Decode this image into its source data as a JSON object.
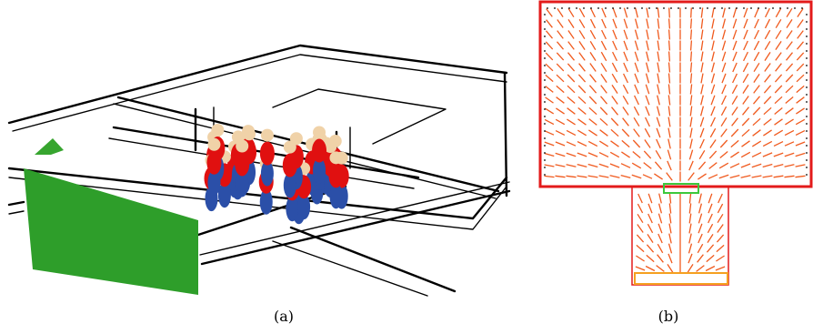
{
  "panel_a": {
    "caption": "(a)"
  },
  "panel_b": {
    "caption": "(b)"
  },
  "colors": {
    "wireframe": "#000000",
    "wall_green": "#2e9e2a",
    "agent_red": "#e01010",
    "agent_blue": "#2b4fa8",
    "agent_skin": "#f0d2a8",
    "room_border": "#e31b1b",
    "arrow": "#f05a1e",
    "doorway": "#3cc83c",
    "exit": "#f5a020"
  }
}
